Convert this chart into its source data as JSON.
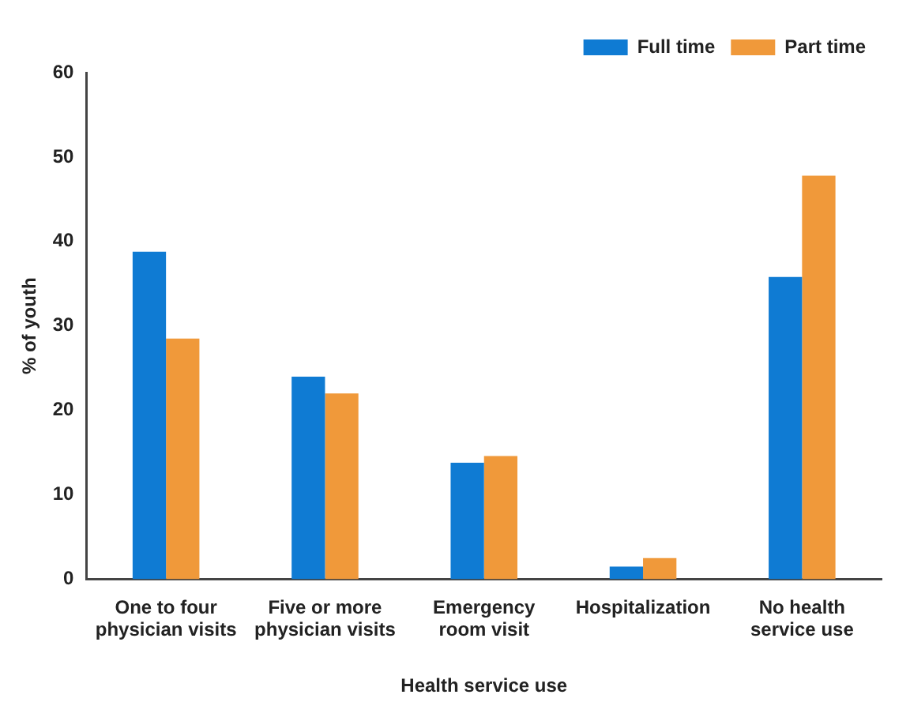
{
  "chart_data": {
    "type": "bar",
    "xlabel": "Health service use",
    "ylabel": "% of youth",
    "categories": [
      "One to four physician visits",
      "Five or more physician visits",
      "Emergency room visit",
      "Hospitalization",
      "No health service use"
    ],
    "series": [
      {
        "name": "Full time",
        "color": "#0f7bd3",
        "values": [
          38.8,
          24.0,
          13.8,
          1.5,
          35.8
        ]
      },
      {
        "name": "Part time",
        "color": "#f0993a",
        "values": [
          28.5,
          22.0,
          14.6,
          2.5,
          47.8
        ]
      }
    ],
    "ylim": [
      0,
      60
    ],
    "yticks": [
      0,
      10,
      20,
      30,
      40,
      50,
      60
    ],
    "grid": false,
    "legend": "top right"
  }
}
